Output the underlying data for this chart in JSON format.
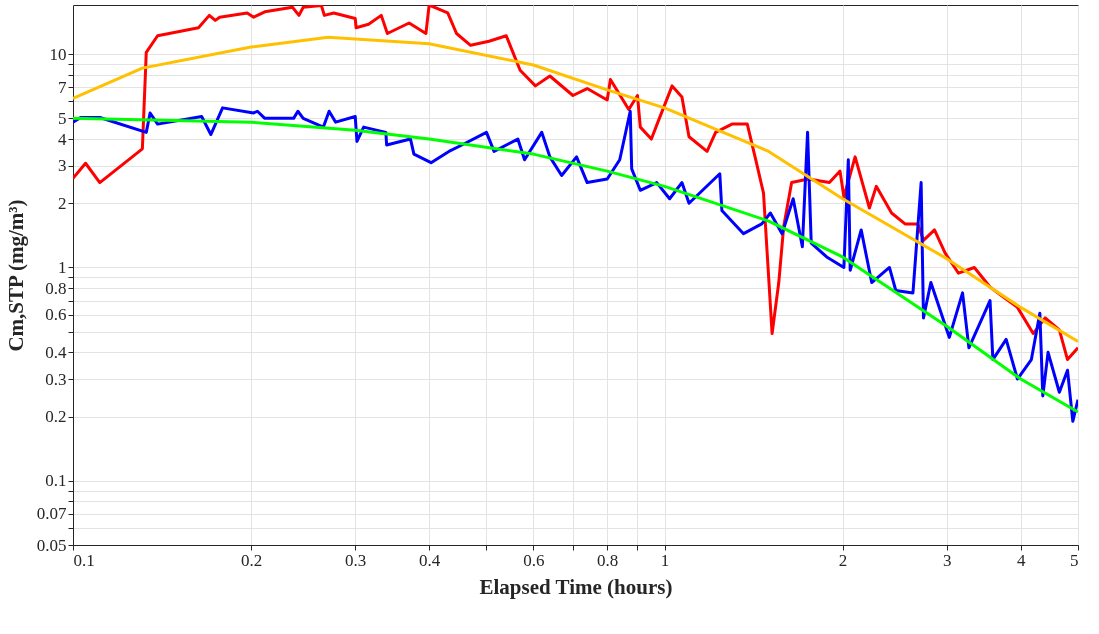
{
  "chart_data": {
    "type": "line",
    "xlabel": "Elapsed Time (hours)",
    "ylabel": "Cm,STP (mg/m³)",
    "log": "xy",
    "grid": true,
    "line_style": "solid",
    "marker": "none",
    "xlim": [
      0.1,
      5
    ],
    "ylim": [
      0.05,
      17
    ],
    "xticks": [
      0.1,
      0.2,
      0.3,
      0.4,
      {
        "value": 0.5,
        "label": null
      },
      0.6,
      {
        "value": 0.7,
        "label": null
      },
      0.8,
      {
        "value": 0.9,
        "label": null
      },
      1,
      2,
      3,
      4,
      5
    ],
    "yticks": [
      0.05,
      {
        "value": 0.06,
        "label": null
      },
      0.07,
      {
        "value": 0.08,
        "label": null
      },
      {
        "value": 0.09,
        "label": null
      },
      0.1,
      0.2,
      0.3,
      0.4,
      {
        "value": 0.5,
        "label": null
      },
      0.6,
      {
        "value": 0.7,
        "label": null
      },
      0.8,
      {
        "value": 0.9,
        "label": null
      },
      1,
      2,
      3,
      4,
      5,
      {
        "value": 6,
        "label": null
      },
      7,
      {
        "value": 8,
        "label": null
      },
      {
        "value": 9,
        "label": null
      },
      10
    ],
    "series": [
      {
        "color": "#ff0000",
        "x": [
          0.1,
          0.105,
          0.111,
          0.131,
          0.133,
          0.139,
          0.163,
          0.17,
          0.174,
          0.177,
          0.197,
          0.202,
          0.211,
          0.235,
          0.241,
          0.245,
          0.263,
          0.266,
          0.276,
          0.3,
          0.301,
          0.316,
          0.332,
          0.34,
          0.37,
          0.395,
          0.4,
          0.43,
          0.445,
          0.47,
          0.505,
          0.54,
          0.57,
          0.605,
          0.64,
          0.7,
          0.74,
          0.8,
          0.81,
          0.87,
          0.9,
          0.91,
          0.95,
          0.98,
          1.03,
          1.07,
          1.1,
          1.18,
          1.22,
          1.3,
          1.38,
          1.43,
          1.47,
          1.52,
          1.56,
          1.59,
          1.64,
          1.75,
          1.9,
          1.98,
          2.01,
          2.1,
          2.22,
          2.28,
          2.42,
          2.55,
          2.68,
          2.74,
          2.86,
          2.98,
          3.14,
          3.34,
          3.55,
          3.73,
          3.95,
          4.2,
          4.4,
          4.65,
          4.8,
          5.0
        ],
        "values": [
          2.62,
          3.08,
          2.5,
          3.6,
          10.2,
          12.2,
          13.3,
          15.2,
          14.4,
          14.9,
          15.6,
          14.9,
          15.8,
          16.6,
          15.2,
          16.6,
          16.9,
          15.2,
          15.6,
          14.7,
          13.3,
          13.8,
          15.2,
          12.5,
          14.0,
          12.5,
          17.0,
          15.6,
          12.5,
          11.0,
          11.5,
          12.2,
          8.4,
          7.1,
          7.9,
          6.4,
          6.9,
          6.1,
          7.6,
          5.5,
          6.4,
          4.55,
          4.0,
          5.0,
          7.1,
          6.3,
          4.1,
          3.5,
          4.3,
          4.7,
          4.7,
          3.1,
          2.23,
          0.49,
          0.85,
          1.55,
          2.5,
          2.6,
          2.5,
          2.83,
          2.14,
          3.3,
          1.9,
          2.4,
          1.8,
          1.6,
          1.6,
          1.34,
          1.5,
          1.17,
          0.94,
          1.0,
          0.81,
          0.73,
          0.65,
          0.49,
          0.58,
          0.51,
          0.37,
          0.42
        ]
      },
      {
        "color": "#0000ff",
        "x": [
          0.1,
          0.103,
          0.111,
          0.133,
          0.135,
          0.139,
          0.165,
          0.171,
          0.179,
          0.202,
          0.205,
          0.211,
          0.236,
          0.24,
          0.245,
          0.265,
          0.271,
          0.278,
          0.3,
          0.302,
          0.31,
          0.338,
          0.339,
          0.372,
          0.377,
          0.403,
          0.432,
          0.45,
          0.5,
          0.515,
          0.565,
          0.58,
          0.62,
          0.64,
          0.67,
          0.71,
          0.74,
          0.8,
          0.84,
          0.875,
          0.88,
          0.91,
          0.97,
          1.02,
          1.07,
          1.1,
          1.24,
          1.25,
          1.36,
          1.46,
          1.51,
          1.58,
          1.65,
          1.71,
          1.745,
          1.77,
          1.88,
          2.01,
          2.045,
          2.06,
          2.15,
          2.24,
          2.4,
          2.46,
          2.63,
          2.715,
          2.74,
          2.82,
          3.03,
          3.19,
          3.27,
          3.55,
          3.59,
          3.78,
          3.95,
          4.17,
          4.31,
          4.36,
          4.45,
          4.65,
          4.8,
          4.9,
          5.0
        ],
        "values": [
          4.8,
          5.05,
          5.05,
          4.3,
          5.3,
          4.7,
          5.1,
          4.2,
          5.6,
          5.3,
          5.4,
          5.0,
          5.0,
          5.4,
          5.0,
          4.55,
          5.4,
          4.8,
          5.1,
          3.9,
          4.55,
          4.3,
          3.75,
          4.0,
          3.4,
          3.1,
          3.5,
          3.7,
          4.3,
          3.5,
          4.0,
          3.2,
          4.3,
          3.3,
          2.7,
          3.3,
          2.5,
          2.6,
          3.2,
          5.4,
          2.9,
          2.3,
          2.5,
          2.1,
          2.5,
          2.0,
          2.75,
          1.85,
          1.44,
          1.6,
          1.8,
          1.44,
          2.1,
          1.25,
          4.3,
          1.3,
          1.12,
          1.0,
          3.2,
          0.97,
          1.5,
          0.85,
          1.0,
          0.78,
          0.76,
          2.5,
          0.58,
          0.85,
          0.47,
          0.76,
          0.42,
          0.7,
          0.37,
          0.46,
          0.3,
          0.37,
          0.61,
          0.25,
          0.4,
          0.26,
          0.33,
          0.19,
          0.24
        ]
      },
      {
        "color": "#ffc000",
        "x": [
          0.1,
          0.131,
          0.2,
          0.27,
          0.4,
          0.6,
          0.8,
          1,
          1.5,
          2,
          3,
          4,
          5
        ],
        "values": [
          6.2,
          8.6,
          10.8,
          12.0,
          11.2,
          8.9,
          6.8,
          5.6,
          3.5,
          2.1,
          1.1,
          0.65,
          0.45
        ]
      },
      {
        "color": "#00ff00",
        "x": [
          0.1,
          0.2,
          0.3,
          0.4,
          0.6,
          0.8,
          1,
          1.5,
          2,
          3,
          4,
          5
        ],
        "values": [
          5.0,
          4.8,
          4.4,
          4.0,
          3.4,
          2.83,
          2.4,
          1.65,
          1.12,
          0.53,
          0.3,
          0.21
        ]
      }
    ]
  }
}
